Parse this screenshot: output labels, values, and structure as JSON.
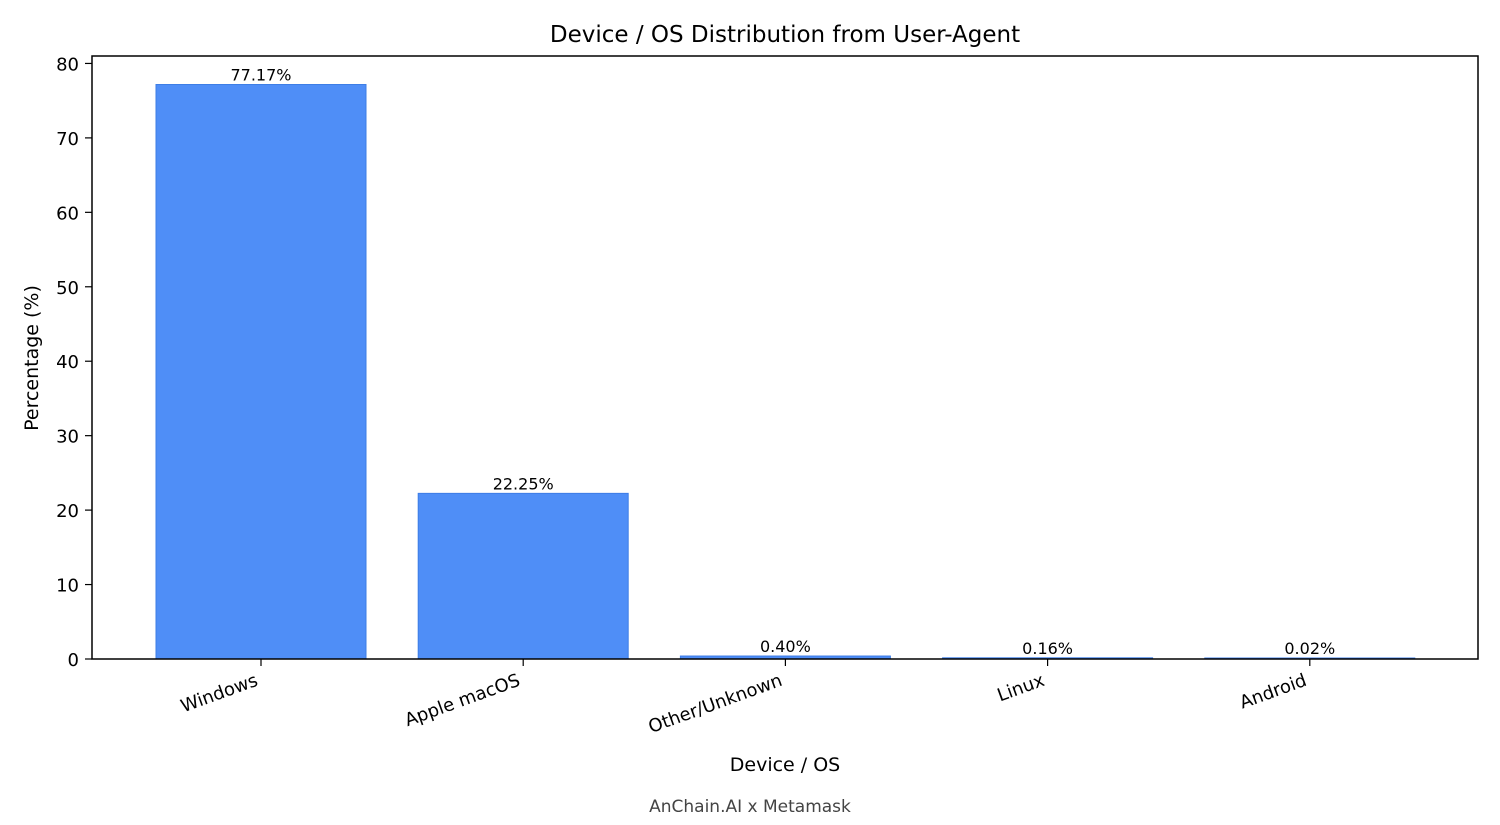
{
  "chart_data": {
    "type": "bar",
    "title": "Device / OS Distribution from User-Agent",
    "xlabel": "Device / OS",
    "ylabel": "Percentage (%)",
    "categories": [
      "Windows",
      "Apple macOS",
      "Other/Unknown",
      "Linux",
      "Android"
    ],
    "values": [
      77.17,
      22.25,
      0.4,
      0.16,
      0.02
    ],
    "value_labels": [
      "77.17%",
      "22.25%",
      "0.40%",
      "0.16%",
      "0.02%"
    ],
    "ylim": [
      0,
      81
    ],
    "yticks": [
      0,
      10,
      20,
      30,
      40,
      50,
      60,
      70,
      80
    ],
    "grid": false,
    "legend": "none",
    "bar_color": "#4f8ef7"
  },
  "caption": "AnChain.AI x Metamask"
}
